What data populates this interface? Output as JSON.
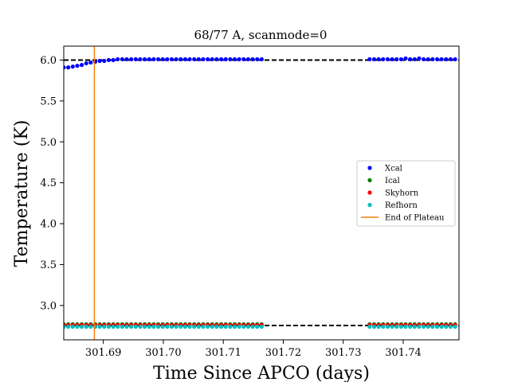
{
  "chart_data": {
    "type": "scatter",
    "title": "68/77 A, scanmode=0",
    "xlabel": "Time Since APCO (days)",
    "ylabel": "Temperature (K)",
    "xlim": [
      301.6834,
      301.7493
    ],
    "ylim": [
      2.58,
      6.17
    ],
    "xticks": [
      301.69,
      301.7,
      301.71,
      301.72,
      301.73,
      301.74
    ],
    "xtick_labels": [
      "301.69",
      "301.70",
      "301.71",
      "301.72",
      "301.73",
      "301.74"
    ],
    "yticks": [
      3.0,
      3.5,
      4.0,
      4.5,
      5.0,
      5.5,
      6.0
    ],
    "ytick_labels": [
      "3.0",
      "3.5",
      "4.0",
      "4.5",
      "5.0",
      "5.5",
      "6.0"
    ],
    "legend_position": "center-right",
    "segments": [
      [
        301.6834,
        301.7167
      ],
      [
        301.7344,
        301.7493
      ]
    ],
    "point_spacing": 0.00075,
    "series": [
      {
        "name": "Xcal",
        "color": "#0000ff",
        "segment_values": [
          [
            5.91,
            5.91,
            5.92,
            5.93,
            5.94,
            5.96,
            5.97,
            5.98,
            5.99,
            5.99,
            6.0,
            6.0,
            6.01,
            6.01,
            6.01,
            6.01,
            6.01,
            6.01,
            6.01,
            6.01,
            6.01,
            6.01,
            6.01,
            6.01,
            6.01,
            6.01,
            6.01,
            6.01,
            6.01,
            6.01,
            6.01,
            6.01,
            6.01,
            6.01,
            6.01,
            6.01,
            6.01,
            6.01,
            6.01,
            6.01,
            6.01,
            6.01,
            6.01,
            6.01,
            6.01
          ],
          [
            6.01,
            6.01,
            6.01,
            6.01,
            6.01,
            6.01,
            6.01,
            6.01,
            6.02,
            6.01,
            6.01,
            6.02,
            6.01,
            6.01,
            6.01,
            6.01,
            6.01,
            6.01,
            6.01,
            6.01,
            6.01
          ]
        ]
      },
      {
        "name": "Ical",
        "color": "#008000",
        "constant": 2.77
      },
      {
        "name": "Skyhorn",
        "color": "#ff0000",
        "constant": 2.76
      },
      {
        "name": "Refhorn",
        "color": "#00bfbf",
        "constant": 2.74
      }
    ],
    "reference_lines": [
      {
        "value": 6.0,
        "style": "dashed",
        "color": "#000000"
      },
      {
        "value": 2.755,
        "style": "dashed",
        "color": "#000000"
      }
    ],
    "vertical_line": {
      "name": "End of Plateau",
      "x": 301.6885,
      "color": "#ff7f0e"
    }
  }
}
